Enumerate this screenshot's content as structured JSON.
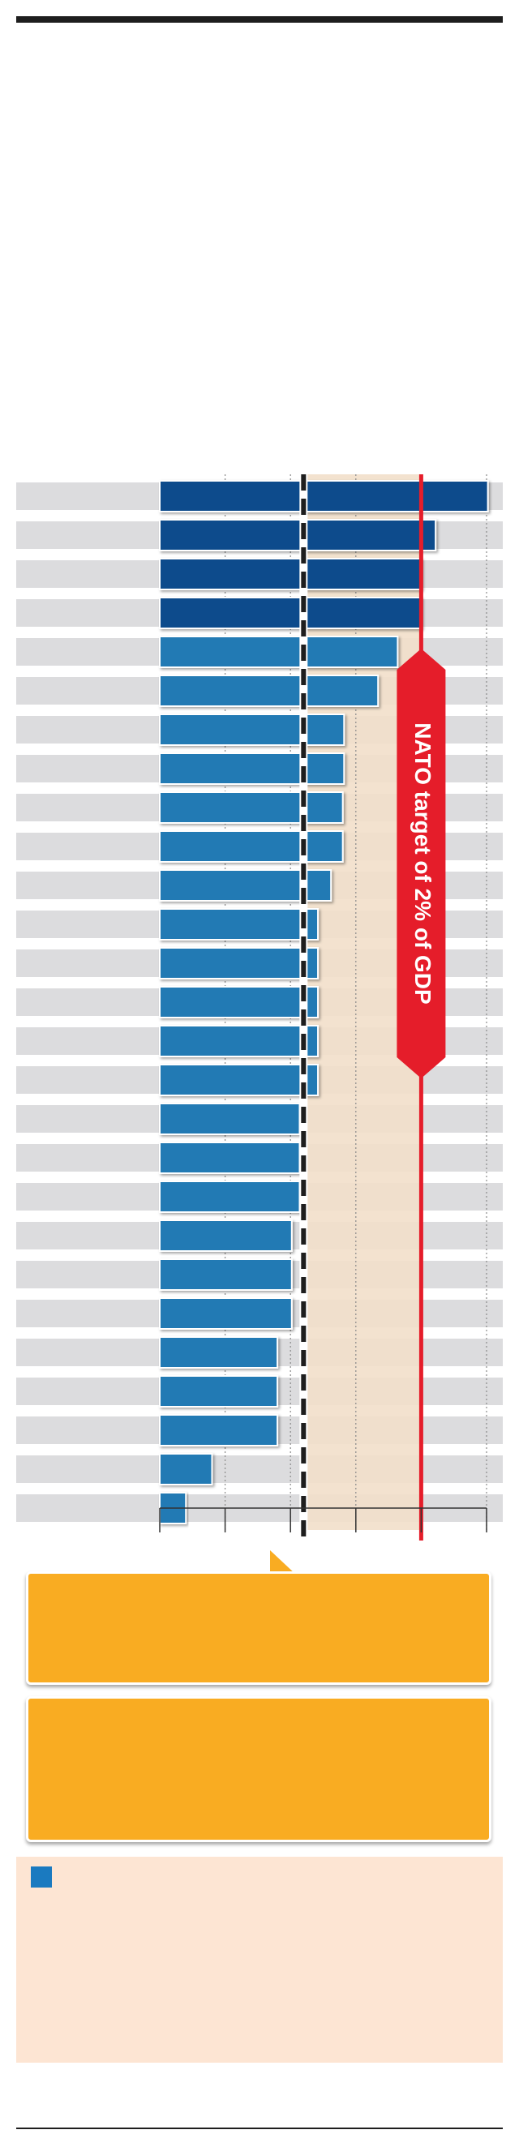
{
  "colors": {
    "page_background": "#ffffff",
    "row_stripe": "#dcdcde",
    "target_band": "#f2dfca",
    "bar_above_target": "#0a4c8c",
    "bar_below_target": "#247ab4",
    "nato_target_line": "#e51d2a",
    "average_line": "#1e1e1e",
    "callout": "#f9ac22",
    "legend_background": "#fde5d3",
    "legend_swatch": "#1a7ac0"
  },
  "chart_data": {
    "type": "bar",
    "orientation": "horizontal",
    "title": "",
    "xlabel": "",
    "ylabel": "",
    "xlim": [
      0,
      2.5
    ],
    "grid": true,
    "target": {
      "value": 2.0,
      "label": "NATO target of 2% of GDP"
    },
    "average": {
      "value": 1.1
    },
    "values": [
      2.51,
      2.11,
      2.0,
      2.0,
      1.82,
      1.67,
      1.41,
      1.41,
      1.4,
      1.4,
      1.31,
      1.21,
      1.21,
      1.21,
      1.21,
      1.21,
      1.07,
      1.07,
      1.07,
      1.01,
      1.01,
      1.01,
      0.9,
      0.9,
      0.9,
      0.4,
      0.2
    ]
  }
}
